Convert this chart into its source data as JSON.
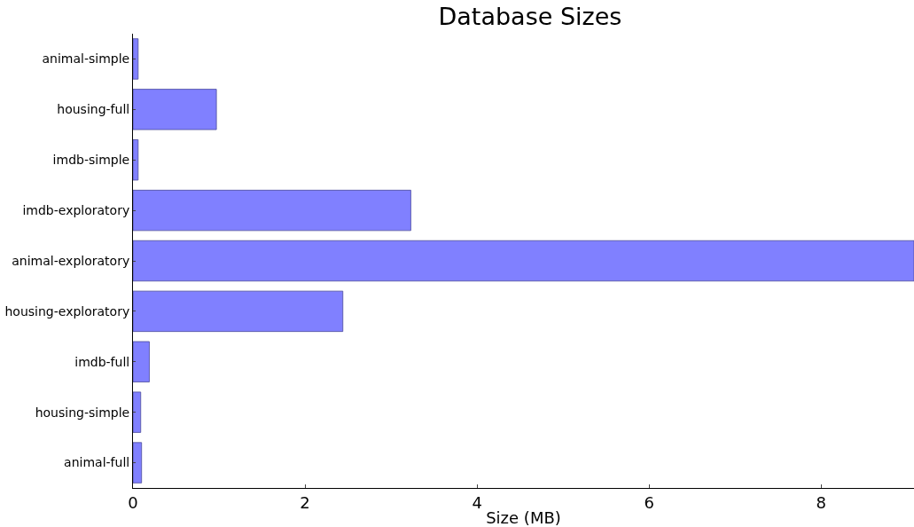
{
  "chart_data": {
    "type": "bar",
    "orientation": "horizontal",
    "title": "Database Sizes",
    "xlabel": "Size (MB)",
    "categories": [
      "animal-simple",
      "housing-full",
      "imdb-simple",
      "imdb-exploratory",
      "animal-exploratory",
      "housing-exploratory",
      "imdb-full",
      "housing-simple",
      "animal-full"
    ],
    "values": [
      0.06,
      0.97,
      0.06,
      3.23,
      9.08,
      2.44,
      0.19,
      0.09,
      0.1
    ],
    "color": "#8080ff",
    "xlim": [
      0,
      9.08
    ],
    "xticks": [
      0,
      2,
      4,
      6,
      8
    ],
    "grid": false
  }
}
